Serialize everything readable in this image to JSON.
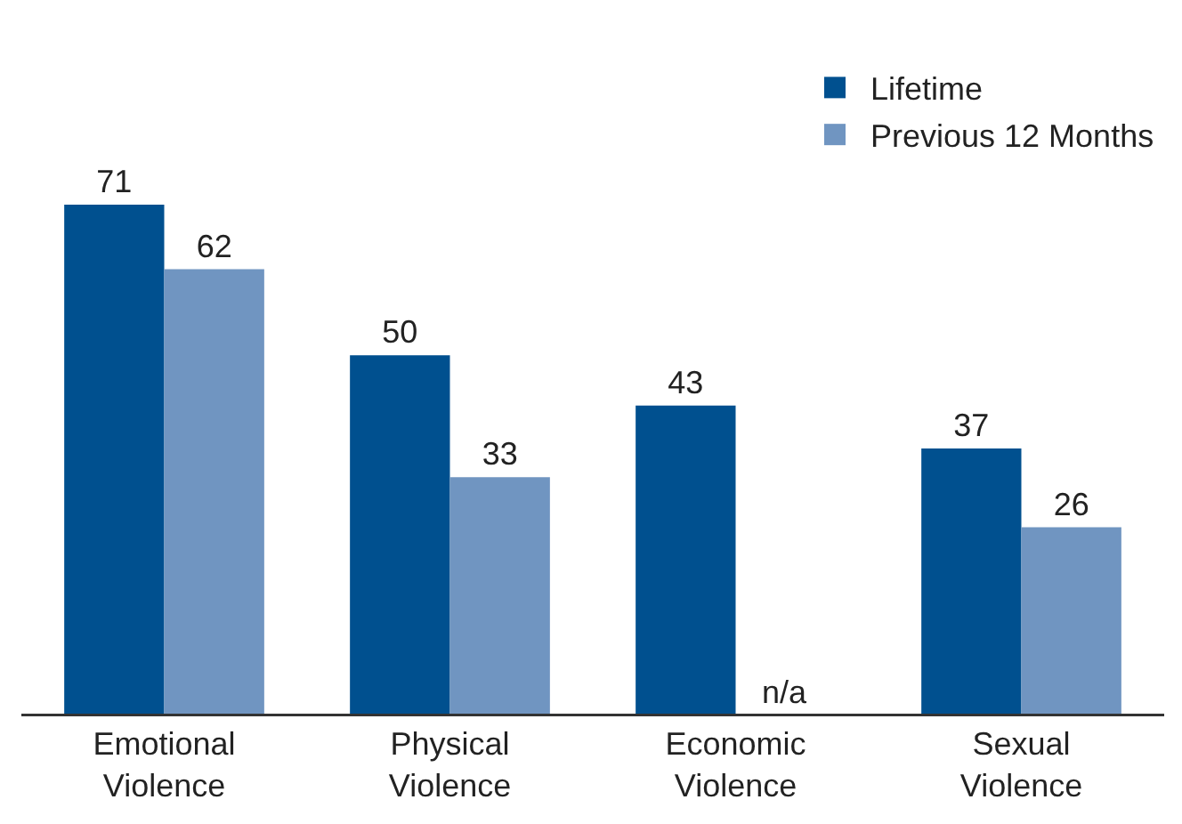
{
  "chart_data": {
    "type": "bar",
    "categories": [
      "Emotional Violence",
      "Physical Violence",
      "Economic Violence",
      "Sexual Violence"
    ],
    "series": [
      {
        "name": "Lifetime",
        "color": "#00508f",
        "values": [
          71,
          50,
          43,
          37
        ],
        "value_labels": [
          "71",
          "50",
          "43",
          "37"
        ]
      },
      {
        "name": "Previous 12 Months",
        "color": "#7095c1",
        "values": [
          62,
          33,
          null,
          26
        ],
        "value_labels": [
          "62",
          "33",
          "n/a",
          "26"
        ]
      }
    ],
    "legend": "top right",
    "grid": false
  }
}
